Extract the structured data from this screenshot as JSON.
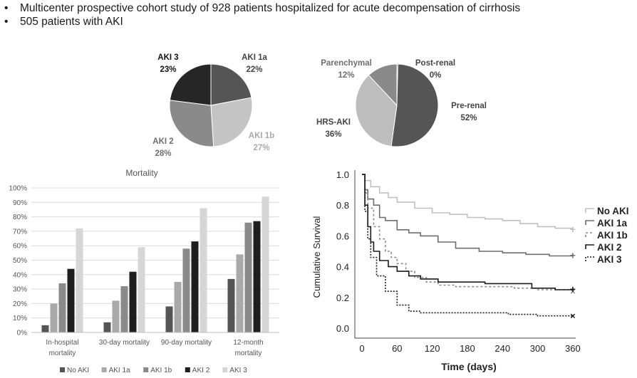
{
  "bullets": [
    "Multicenter prospective cohort study of 928 patients hospitalized for acute decompensation of cirrhosis",
    "505 patients with AKI"
  ],
  "chart_data": [
    {
      "type": "pie",
      "title": "",
      "slices": [
        {
          "label": "AKI 1a",
          "pct_label": "22%",
          "value": 22,
          "color": "#555555"
        },
        {
          "label": "AKI 1b",
          "pct_label": "27%",
          "value": 27,
          "color": "#c4c4c4"
        },
        {
          "label": "AKI 2",
          "pct_label": "28%",
          "value": 28,
          "color": "#8a8a8a"
        },
        {
          "label": "AKI 3",
          "pct_label": "23%",
          "value": 23,
          "color": "#262626"
        }
      ]
    },
    {
      "type": "pie",
      "title": "",
      "slices": [
        {
          "label": "Post-renal",
          "pct_label": "0%",
          "value": 0.4,
          "color": "#1e1e1e"
        },
        {
          "label": "Pre-renal",
          "pct_label": "52%",
          "value": 52,
          "color": "#555555"
        },
        {
          "label": "HRS-AKI",
          "pct_label": "36%",
          "value": 36,
          "color": "#bdbdbd"
        },
        {
          "label": "Parenchymal",
          "pct_label": "12%",
          "value": 12,
          "color": "#8a8a8a"
        }
      ]
    },
    {
      "type": "bar",
      "title": "Mortality",
      "categories": [
        [
          "In-hospital",
          "mortality"
        ],
        [
          "30-day mortality"
        ],
        [
          "90-day mortality"
        ],
        [
          "12-month",
          "mortality"
        ]
      ],
      "yticks": [
        "0%",
        "10%",
        "20%",
        "30%",
        "40%",
        "50%",
        "60%",
        "70%",
        "80%",
        "90%",
        "100%"
      ],
      "ylim": [
        0,
        100
      ],
      "series": [
        {
          "name": "No AKI",
          "color": "#555555",
          "values": [
            5,
            7,
            18,
            37
          ]
        },
        {
          "name": "AKI 1a",
          "color": "#a9a9a9",
          "values": [
            20,
            22,
            35,
            54
          ]
        },
        {
          "name": "AKI 1b",
          "color": "#8a8a8a",
          "values": [
            34,
            32,
            58,
            76
          ]
        },
        {
          "name": "AKI 2",
          "color": "#1e1e1e",
          "values": [
            44,
            42,
            63,
            77
          ]
        },
        {
          "name": "AKI 3",
          "color": "#d6d6d6",
          "values": [
            72,
            59,
            86,
            94
          ]
        }
      ]
    },
    {
      "type": "line",
      "title": "",
      "xlabel": "Time (days)",
      "ylabel": "Cumulative Survival",
      "xlim": [
        0,
        365
      ],
      "ylim": [
        0,
        1.0
      ],
      "xticks": [
        "0",
        "60",
        "120",
        "180",
        "240",
        "300",
        "360"
      ],
      "yticks": [
        "0.0",
        "0.2",
        "0.4",
        "0.6",
        "0.8",
        "1.0"
      ],
      "series": [
        {
          "name": "No AKI",
          "legend_label": "No AKI",
          "color": "#c0c0c0",
          "dash": "",
          "end_marker": "+",
          "points": [
            [
              0,
              1.0
            ],
            [
              5,
              0.96
            ],
            [
              15,
              0.92
            ],
            [
              30,
              0.88
            ],
            [
              45,
              0.85
            ],
            [
              60,
              0.82
            ],
            [
              90,
              0.78
            ],
            [
              120,
              0.75
            ],
            [
              150,
              0.74
            ],
            [
              180,
              0.72
            ],
            [
              210,
              0.71
            ],
            [
              240,
              0.7
            ],
            [
              270,
              0.68
            ],
            [
              300,
              0.66
            ],
            [
              330,
              0.65
            ],
            [
              360,
              0.64
            ]
          ]
        },
        {
          "name": "AKI 1a",
          "legend_label": "AKI 1a",
          "color": "#6e6e6e",
          "dash": "",
          "end_marker": "+",
          "points": [
            [
              0,
              1.0
            ],
            [
              5,
              0.9
            ],
            [
              10,
              0.84
            ],
            [
              20,
              0.8
            ],
            [
              30,
              0.72
            ],
            [
              40,
              0.7
            ],
            [
              60,
              0.64
            ],
            [
              80,
              0.62
            ],
            [
              100,
              0.6
            ],
            [
              130,
              0.56
            ],
            [
              160,
              0.52
            ],
            [
              200,
              0.5
            ],
            [
              240,
              0.49
            ],
            [
              280,
              0.48
            ],
            [
              320,
              0.47
            ],
            [
              360,
              0.47
            ]
          ]
        },
        {
          "name": "AKI 1b",
          "legend_label": "AKI 1b",
          "color": "#8a8a8a",
          "dash": "3,3",
          "end_marker": "x",
          "points": [
            [
              0,
              1.0
            ],
            [
              5,
              0.88
            ],
            [
              10,
              0.78
            ],
            [
              20,
              0.66
            ],
            [
              30,
              0.58
            ],
            [
              40,
              0.5
            ],
            [
              50,
              0.46
            ],
            [
              60,
              0.42
            ],
            [
              75,
              0.37
            ],
            [
              90,
              0.33
            ],
            [
              110,
              0.3
            ],
            [
              130,
              0.28
            ],
            [
              160,
              0.27
            ],
            [
              200,
              0.27
            ],
            [
              260,
              0.26
            ],
            [
              300,
              0.25
            ],
            [
              360,
              0.24
            ]
          ]
        },
        {
          "name": "AKI 2",
          "legend_label": "AKI 2",
          "color": "#1a1a1a",
          "dash": "",
          "end_marker": "+",
          "points": [
            [
              0,
              1.0
            ],
            [
              5,
              0.8
            ],
            [
              10,
              0.66
            ],
            [
              15,
              0.56
            ],
            [
              20,
              0.5
            ],
            [
              30,
              0.44
            ],
            [
              45,
              0.4
            ],
            [
              60,
              0.37
            ],
            [
              80,
              0.34
            ],
            [
              100,
              0.32
            ],
            [
              130,
              0.3
            ],
            [
              170,
              0.3
            ],
            [
              210,
              0.29
            ],
            [
              250,
              0.29
            ],
            [
              290,
              0.26
            ],
            [
              330,
              0.25
            ],
            [
              360,
              0.25
            ]
          ]
        },
        {
          "name": "AKI 3",
          "legend_label": "AKI 3",
          "color": "#1a1a1a",
          "dash": "2,2",
          "end_marker": "x",
          "points": [
            [
              0,
              1.0
            ],
            [
              5,
              0.76
            ],
            [
              10,
              0.58
            ],
            [
              15,
              0.46
            ],
            [
              25,
              0.34
            ],
            [
              40,
              0.24
            ],
            [
              60,
              0.15
            ],
            [
              80,
              0.11
            ],
            [
              100,
              0.1
            ],
            [
              150,
              0.1
            ],
            [
              200,
              0.1
            ],
            [
              250,
              0.09
            ],
            [
              300,
              0.08
            ],
            [
              360,
              0.08
            ]
          ]
        }
      ]
    }
  ]
}
